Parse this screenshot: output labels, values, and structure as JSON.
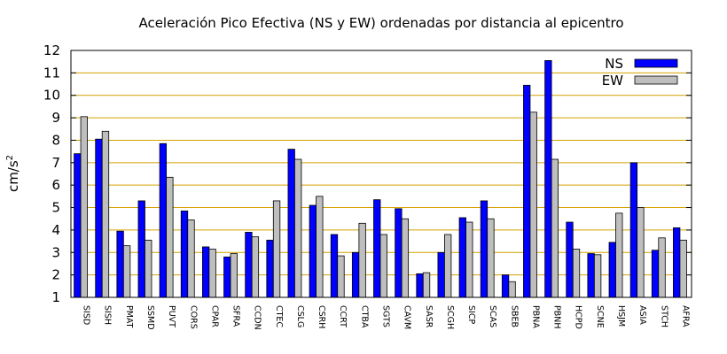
{
  "chart_data": {
    "type": "bar",
    "title": "Aceleración Pico Efectiva (NS y EW) ordenadas por distancia al epicentro",
    "ylabel": "cm/s",
    "ylabel_superscript": "2",
    "xlabel": "",
    "ylim": [
      1,
      12
    ],
    "yticks": [
      "1",
      "2",
      "3",
      "4",
      "5",
      "6",
      "7",
      "8",
      "9",
      "10",
      "11",
      "12"
    ],
    "grid": "horizontal",
    "legend_position": "top-right",
    "categories": [
      "SISD",
      "SISH",
      "PMAT",
      "SSMD",
      "PUVT",
      "CORS",
      "CPAR",
      "SFRA",
      "CCDN",
      "CTEC",
      "CSLG",
      "CSRH",
      "CCRT",
      "CTBA",
      "SGTS",
      "CAVM",
      "SASR",
      "SCGH",
      "SICP",
      "SCAS",
      "SBEB",
      "PBNA",
      "PBNH",
      "HCPD",
      "SCNE",
      "HSJM",
      "ASIA",
      "STCH",
      "AFRA"
    ],
    "series": [
      {
        "name": "NS",
        "color": "#0000ff",
        "values": [
          7.4,
          8.05,
          3.95,
          5.3,
          7.85,
          4.85,
          3.25,
          2.8,
          3.9,
          3.55,
          7.6,
          5.1,
          3.8,
          3.0,
          5.35,
          4.95,
          2.05,
          3.0,
          4.55,
          5.3,
          2.0,
          10.45,
          11.55,
          4.35,
          2.95,
          3.45,
          7.0,
          3.1,
          4.1
        ]
      },
      {
        "name": "EW",
        "color": "#bebebe",
        "values": [
          9.05,
          8.4,
          3.3,
          3.55,
          6.35,
          4.45,
          3.15,
          2.95,
          3.7,
          5.3,
          7.15,
          5.5,
          2.85,
          4.3,
          3.8,
          4.5,
          2.1,
          3.8,
          4.35,
          4.5,
          1.7,
          9.25,
          7.15,
          3.15,
          2.9,
          4.75,
          5.0,
          3.65,
          3.55
        ]
      }
    ],
    "colors": {
      "grid": "#d4a000",
      "axis": "#000000",
      "bar_outline": "#000000"
    }
  }
}
